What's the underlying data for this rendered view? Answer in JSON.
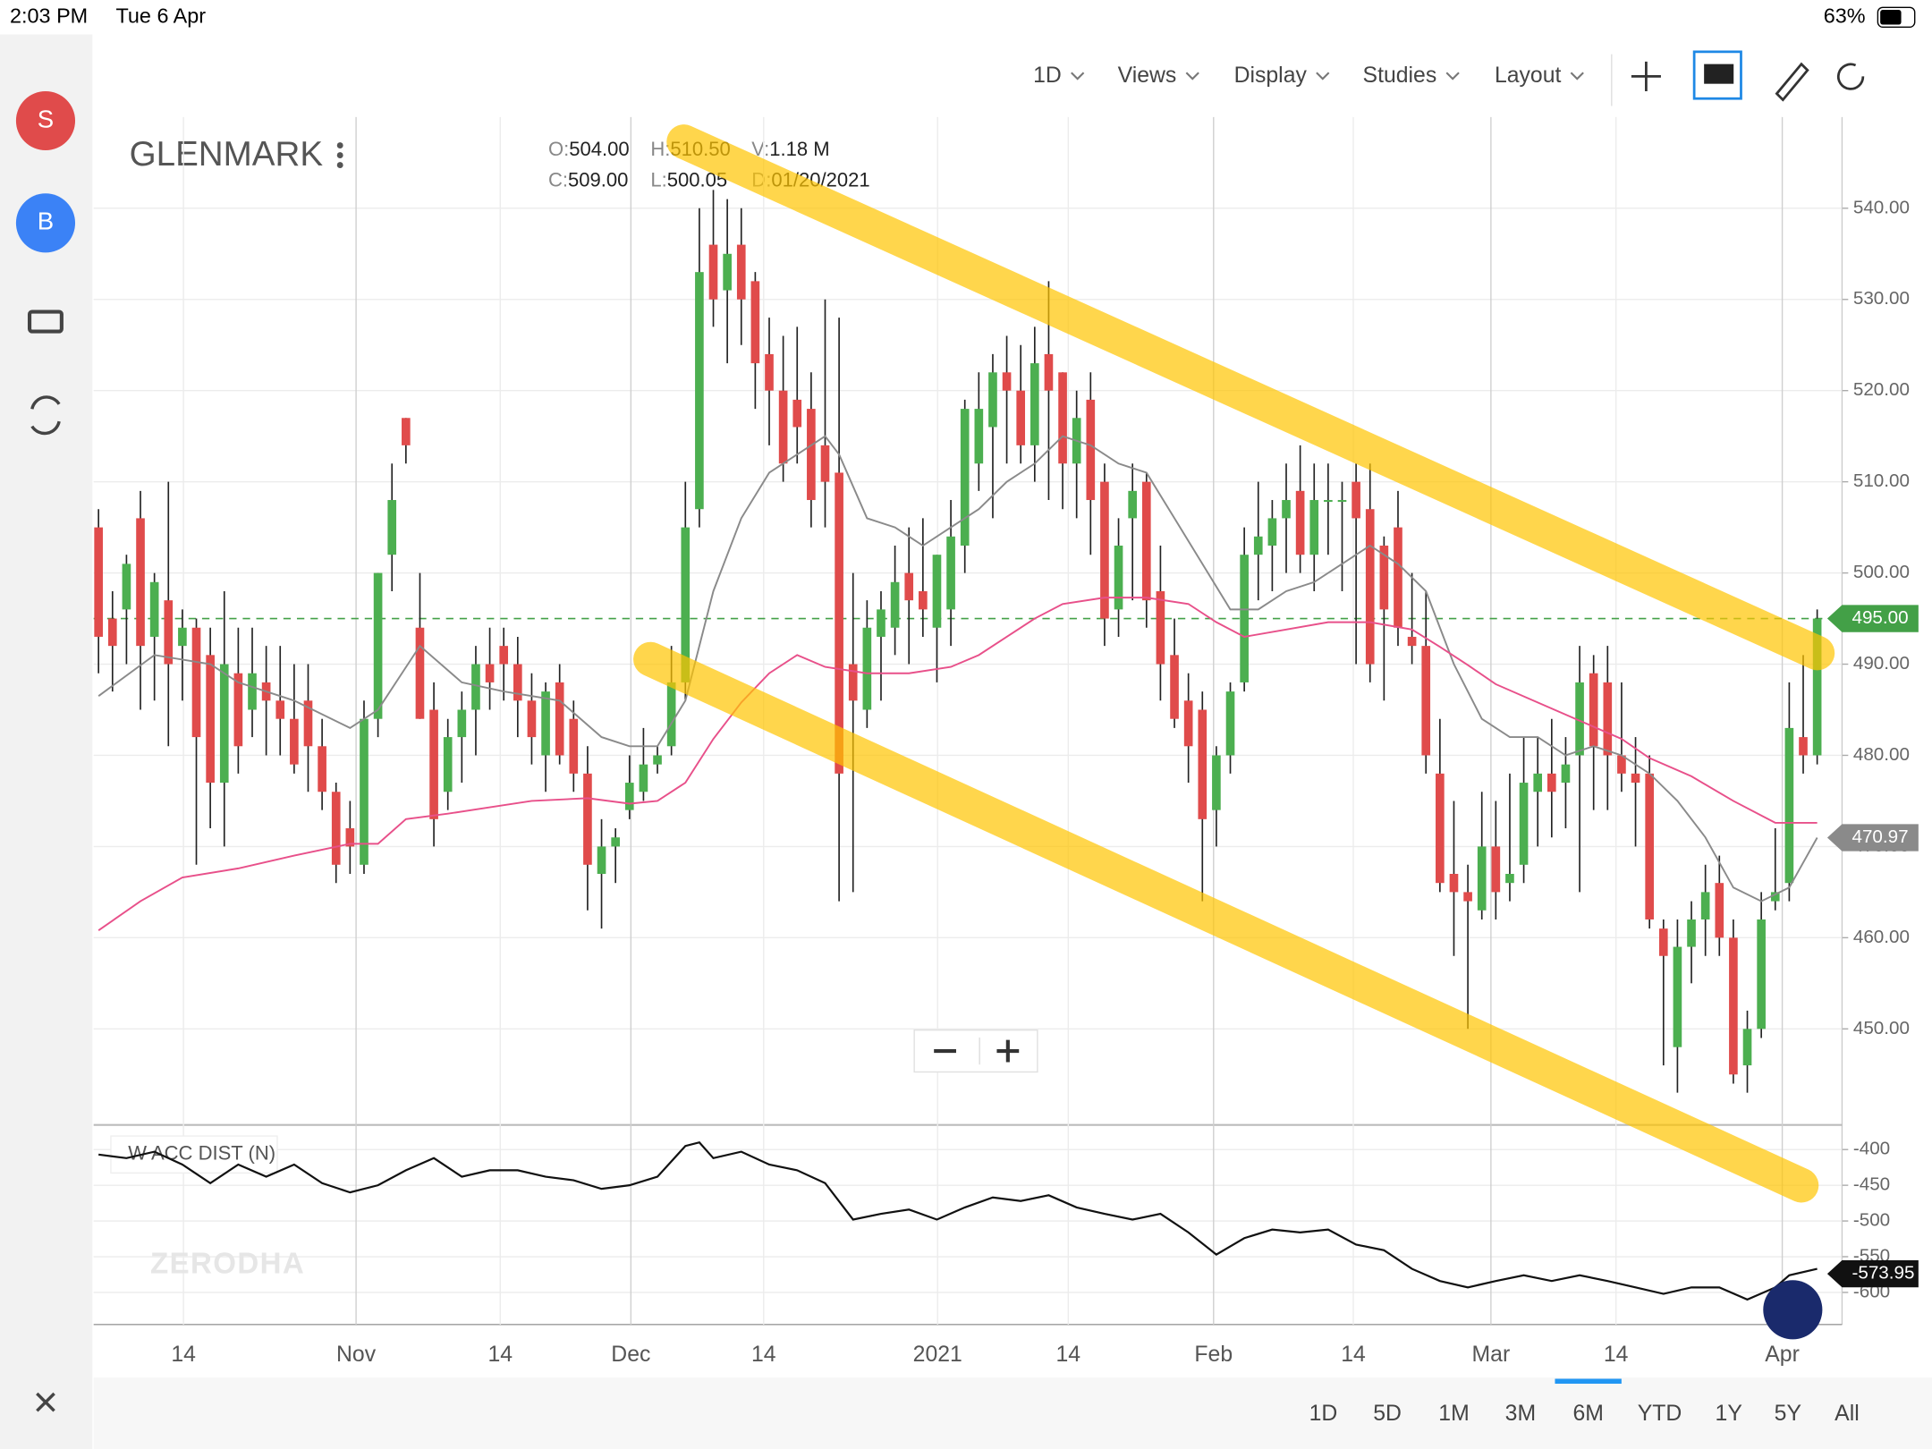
{
  "status": {
    "time": "2:03 PM",
    "date": "Tue 6 Apr",
    "battery": "63%"
  },
  "sidebar": [
    "S",
    "B"
  ],
  "toolbar": [
    "1D",
    "Views",
    "Display",
    "Studies",
    "Layout"
  ],
  "ranges": [
    "1D",
    "5D",
    "1M",
    "3M",
    "6M",
    "YTD",
    "1Y",
    "5Y",
    "All"
  ],
  "selected_range": "6M",
  "watermark": "ZERODHA",
  "info": [
    {
      "key": "O:",
      "value": "504.00"
    },
    {
      "key": "H:",
      "value": "510.50"
    },
    {
      "key": "V:",
      "value": "1.18 M"
    },
    {
      "key": "C:",
      "value": "509.00"
    },
    {
      "key": "L:",
      "value": "500.05"
    },
    {
      "key": "D:",
      "value": "01/20/2021"
    }
  ],
  "chart_data": {
    "type": "candlestick",
    "title": "GLENMARK",
    "up_color": "#4caf50",
    "down_color": "#e04b4b",
    "grid": true,
    "ohlc": [
      [
        505,
        507,
        489,
        493
      ],
      [
        495,
        498,
        487,
        492
      ],
      [
        496,
        502,
        490,
        501
      ],
      [
        506,
        509,
        485,
        492
      ],
      [
        493,
        500,
        486,
        499
      ],
      [
        497,
        510,
        481,
        490
      ],
      [
        492,
        496,
        486,
        494
      ],
      [
        494,
        495,
        468,
        482
      ],
      [
        491,
        494,
        472,
        477
      ],
      [
        477,
        498,
        470,
        490
      ],
      [
        489,
        494,
        478,
        481
      ],
      [
        485,
        494,
        482,
        489
      ],
      [
        488,
        492,
        480,
        486
      ],
      [
        486,
        492,
        480,
        484
      ],
      [
        484,
        490,
        478,
        479
      ],
      [
        486,
        490,
        476,
        481
      ],
      [
        481,
        484,
        474,
        476
      ],
      [
        476,
        477,
        466,
        468
      ],
      [
        472,
        475,
        467,
        470
      ],
      [
        468,
        486,
        467,
        484
      ],
      [
        484,
        500,
        482,
        500
      ],
      [
        502,
        512,
        498,
        508
      ],
      [
        517,
        517,
        512,
        514
      ],
      [
        494,
        500,
        484,
        484
      ],
      [
        485,
        488,
        470,
        473
      ],
      [
        476,
        484,
        474,
        482
      ],
      [
        482,
        487,
        477,
        485
      ],
      [
        485,
        492,
        480,
        490
      ],
      [
        490,
        494,
        485,
        488
      ],
      [
        492,
        494,
        486,
        490
      ],
      [
        490,
        493,
        482,
        486
      ],
      [
        486,
        489,
        479,
        482
      ],
      [
        480,
        488,
        476,
        487
      ],
      [
        488,
        490,
        479,
        480
      ],
      [
        484,
        486,
        476,
        478
      ],
      [
        478,
        481,
        463,
        468
      ],
      [
        467,
        473,
        461,
        470
      ],
      [
        470,
        472,
        466,
        471
      ],
      [
        474,
        480,
        473,
        477
      ],
      [
        476,
        483,
        475,
        479
      ],
      [
        479,
        481,
        478,
        480
      ],
      [
        481,
        492,
        480,
        488
      ],
      [
        488,
        510,
        486,
        505
      ],
      [
        507,
        540,
        505,
        533
      ],
      [
        536,
        542,
        527,
        530
      ],
      [
        531,
        541,
        523,
        535
      ],
      [
        536,
        540,
        525,
        530
      ],
      [
        532,
        533,
        518,
        523
      ],
      [
        524,
        528,
        514,
        520
      ],
      [
        520,
        526,
        510,
        512
      ],
      [
        519,
        527,
        512,
        516
      ],
      [
        518,
        522,
        505,
        508
      ],
      [
        514,
        530,
        505,
        510
      ],
      [
        511,
        528,
        464,
        478
      ],
      [
        490,
        500,
        465,
        486
      ],
      [
        485,
        497,
        483,
        494
      ],
      [
        493,
        498,
        486,
        496
      ],
      [
        494,
        503,
        491,
        499
      ],
      [
        500,
        505,
        490,
        497
      ],
      [
        498,
        506,
        493,
        496
      ],
      [
        494,
        502,
        488,
        502
      ],
      [
        496,
        508,
        492,
        504
      ],
      [
        503,
        519,
        500,
        518
      ],
      [
        512,
        522,
        509,
        518
      ],
      [
        516,
        524,
        506,
        522
      ],
      [
        522,
        526,
        512,
        520
      ],
      [
        520,
        525,
        512,
        514
      ],
      [
        514,
        527,
        510,
        523
      ],
      [
        524,
        532,
        508,
        520
      ],
      [
        522,
        522,
        507,
        512
      ],
      [
        512,
        520,
        506,
        517
      ],
      [
        519,
        522,
        502,
        508
      ],
      [
        510,
        512,
        492,
        495
      ],
      [
        496,
        506,
        493,
        503
      ],
      [
        506,
        512,
        497,
        509
      ],
      [
        510,
        511,
        494,
        497
      ],
      [
        498,
        503,
        486,
        490
      ],
      [
        491,
        495,
        483,
        484
      ],
      [
        486,
        489,
        477,
        481
      ],
      [
        485,
        487,
        464,
        473
      ],
      [
        474,
        481,
        470,
        480
      ],
      [
        480,
        488,
        478,
        487
      ],
      [
        488,
        505,
        487,
        502
      ],
      [
        502,
        510,
        497,
        504
      ],
      [
        503,
        508,
        498,
        506
      ],
      [
        506,
        512,
        500,
        508
      ],
      [
        509,
        514,
        500,
        502
      ],
      [
        502,
        512,
        498,
        508
      ],
      [
        508,
        512,
        502,
        508
      ],
      [
        508,
        510,
        498,
        508
      ],
      [
        510,
        512,
        490,
        506
      ],
      [
        507,
        512,
        488,
        490
      ],
      [
        503,
        504,
        486,
        496
      ],
      [
        505,
        509,
        492,
        494
      ],
      [
        493,
        500,
        490,
        492
      ],
      [
        492,
        498,
        478,
        480
      ],
      [
        478,
        484,
        465,
        466
      ],
      [
        467,
        475,
        458,
        465
      ],
      [
        465,
        468,
        450,
        464
      ],
      [
        463,
        476,
        462,
        470
      ],
      [
        470,
        475,
        462,
        465
      ],
      [
        466,
        478,
        464,
        467
      ],
      [
        468,
        482,
        466,
        477
      ],
      [
        476,
        482,
        470,
        478
      ],
      [
        478,
        484,
        471,
        476
      ],
      [
        477,
        482,
        472,
        479
      ],
      [
        480,
        492,
        465,
        488
      ],
      [
        489,
        491,
        474,
        481
      ],
      [
        488,
        492,
        474,
        480
      ],
      [
        480,
        488,
        476,
        478
      ],
      [
        478,
        482,
        470,
        477
      ],
      [
        478,
        480,
        461,
        462
      ],
      [
        461,
        462,
        446,
        458
      ],
      [
        448,
        462,
        443,
        459
      ],
      [
        459,
        464,
        455,
        462
      ],
      [
        462,
        468,
        458,
        465
      ],
      [
        466,
        469,
        458,
        460
      ],
      [
        460,
        462,
        444,
        445
      ],
      [
        446,
        452,
        443,
        450
      ],
      [
        450,
        465,
        449,
        462
      ],
      [
        464,
        472,
        463,
        465
      ],
      [
        466,
        488,
        464,
        483
      ],
      [
        482,
        491,
        478,
        480
      ],
      [
        480,
        496,
        479,
        495
      ]
    ],
    "xlim": [
      -0.35,
      124.78
    ],
    "xticks": [
      {
        "value": 6.08,
        "label": "14"
      },
      {
        "value": 18.43,
        "label": "Nov"
      },
      {
        "value": 28.75,
        "label": "14"
      },
      {
        "value": 38.1,
        "label": "Dec"
      },
      {
        "value": 47.6,
        "label": "14"
      },
      {
        "value": 60.05,
        "label": "2021"
      },
      {
        "value": 69.4,
        "label": "14"
      },
      {
        "value": 79.8,
        "label": "Feb"
      },
      {
        "value": 89.8,
        "label": "14"
      },
      {
        "value": 99.65,
        "label": "Mar"
      },
      {
        "value": 108.6,
        "label": "14"
      },
      {
        "value": 120.5,
        "label": "Apr"
      }
    ],
    "ylim": [
      439.6,
      550
    ],
    "yticks": [
      {
        "value": 450,
        "label": "450.00"
      },
      {
        "value": 460,
        "label": "460.00"
      },
      {
        "value": 470,
        "label": "470.00"
      },
      {
        "value": 480,
        "label": "480.00"
      },
      {
        "value": 490,
        "label": "490.00"
      },
      {
        "value": 500,
        "label": "500.00"
      },
      {
        "value": 510,
        "label": "510.00"
      },
      {
        "value": 520,
        "label": "520.00"
      },
      {
        "value": 530,
        "label": "530.00"
      },
      {
        "value": 540,
        "label": "540.00"
      }
    ],
    "lines": [
      {
        "color": "#8a8a8a",
        "x": [
          0,
          4,
          8,
          10,
          14,
          18,
          20,
          23,
          26,
          29,
          33,
          36,
          38,
          40,
          42,
          44,
          46,
          48,
          50,
          52,
          53,
          55,
          57,
          59,
          61,
          63,
          65,
          67,
          69,
          71,
          73,
          75,
          77,
          79,
          81,
          83,
          85,
          87,
          89,
          91,
          93,
          95,
          97,
          99,
          101,
          103,
          105,
          107,
          109,
          111,
          113,
          115,
          117,
          119,
          121,
          123
        ],
        "values": [
          486.5,
          491,
          490,
          488,
          486,
          483,
          485,
          492,
          488,
          487,
          486,
          482,
          481,
          481,
          486,
          498,
          506,
          511,
          513,
          515,
          513,
          506,
          505,
          503,
          505,
          507,
          510,
          512,
          515,
          514,
          512,
          511,
          506,
          501,
          496,
          496,
          498,
          499,
          501,
          503,
          501,
          498,
          490,
          484,
          482,
          482,
          480,
          481,
          480,
          478,
          475,
          471,
          465.5,
          464,
          465.5,
          470.97
        ]
      },
      {
        "color": "#e8508a",
        "x": [
          0,
          3,
          6,
          10,
          14,
          18,
          20,
          22,
          25,
          28,
          31,
          35,
          38,
          40,
          42,
          44,
          46,
          48,
          50,
          52,
          55,
          58,
          61,
          63,
          65,
          67,
          69,
          72,
          75,
          78,
          80,
          82,
          85,
          88,
          91,
          94,
          96,
          98,
          100,
          103,
          106,
          109,
          111,
          114,
          117,
          120,
          123
        ],
        "values": [
          460.8,
          464,
          466.6,
          467.6,
          469,
          470.3,
          470.3,
          473,
          473.6,
          474.3,
          475,
          475.3,
          474.7,
          475,
          477,
          481.8,
          485.8,
          489,
          491,
          489.7,
          489,
          489,
          489.7,
          491,
          493,
          495,
          496.6,
          497.3,
          497.3,
          496.6,
          494.6,
          493,
          493.8,
          494.6,
          494.6,
          493.8,
          491.9,
          489.9,
          487.8,
          485.8,
          483.8,
          481.8,
          479.7,
          477.7,
          475,
          472.6,
          472.6
        ]
      }
    ],
    "price_tags": [
      {
        "value": 495,
        "label": "495.00",
        "color": "#43a047",
        "dashed": true
      },
      {
        "value": 470.97,
        "label": "470.97",
        "color": "#8a8a8a",
        "dashed": false
      }
    ],
    "indicator": {
      "name": "W ACC DIST (N)",
      "color": "#111",
      "ylim": [
        -645,
        -369
      ],
      "yticks": [
        -400,
        -450,
        -500,
        -550,
        -600
      ],
      "x": [
        0,
        2,
        4,
        6,
        8,
        10,
        12,
        14,
        16,
        18,
        20,
        22,
        24,
        26,
        28,
        30,
        32,
        34,
        36,
        38,
        40,
        42,
        43,
        44,
        46,
        48,
        50,
        52,
        54,
        56,
        58,
        60,
        62,
        64,
        66,
        68,
        70,
        72,
        74,
        76,
        78,
        80,
        82,
        84,
        86,
        88,
        90,
        92,
        94,
        96,
        98,
        100,
        102,
        104,
        106,
        108,
        110,
        112,
        114,
        116,
        118,
        120,
        121,
        123
      ],
      "values": [
        -407,
        -412,
        -403,
        -421,
        -447,
        -421,
        -438,
        -421,
        -447,
        -460,
        -450,
        -429,
        -412,
        -438,
        -429,
        -429,
        -438,
        -443,
        -455,
        -450,
        -438,
        -395,
        -390,
        -412,
        -403,
        -421,
        -429,
        -447,
        -498,
        -490,
        -484,
        -498,
        -481,
        -467,
        -472,
        -464,
        -481,
        -490,
        -498,
        -490,
        -516,
        -547,
        -524,
        -512,
        -516,
        -512,
        -533,
        -541,
        -567,
        -584,
        -593,
        -584,
        -576,
        -584,
        -576,
        -584,
        -593,
        -602,
        -593,
        -593,
        -610,
        -593,
        -576,
        -567
      ],
      "tag": {
        "value": -573.95,
        "label": "-573.95"
      }
    }
  }
}
